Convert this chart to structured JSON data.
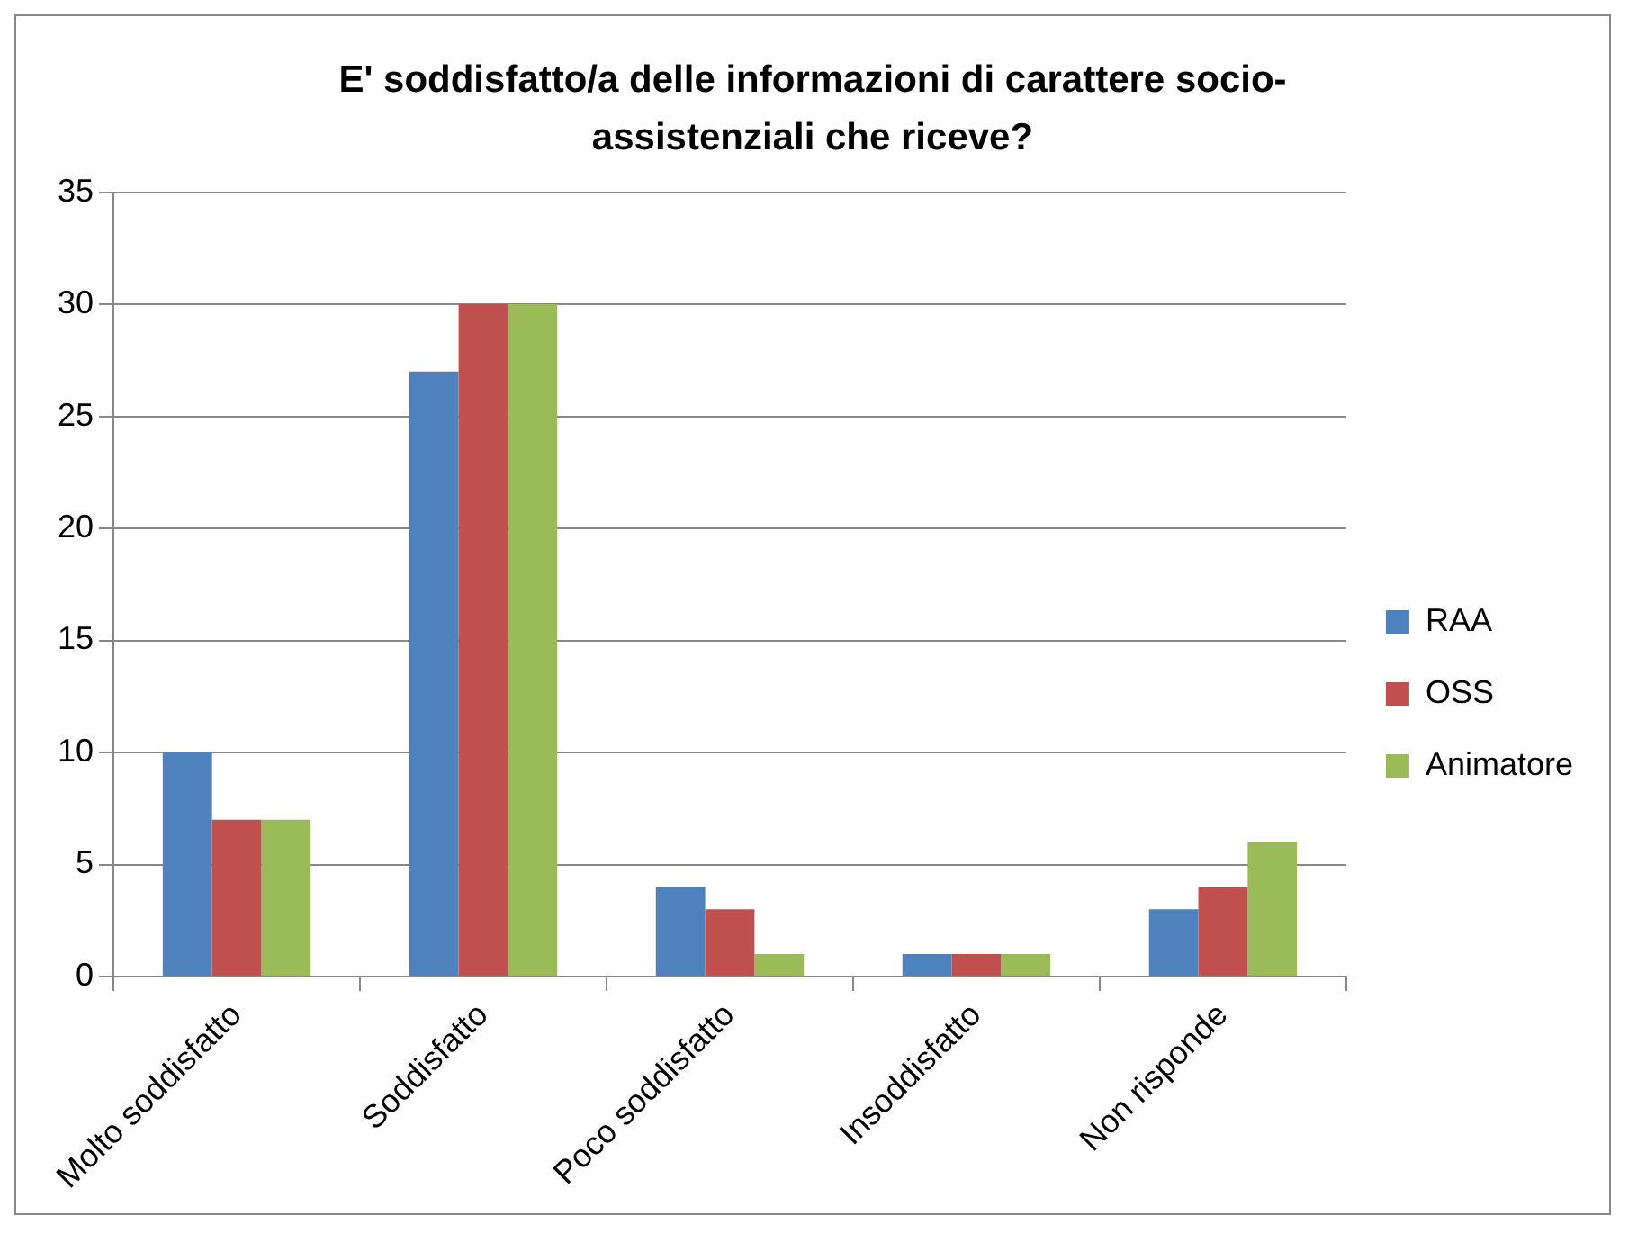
{
  "chart_data": {
    "type": "bar",
    "title": "E' soddisfatto/a delle informazioni di carattere socio-assistenziali che riceve?",
    "categories": [
      "Molto soddisfatto",
      "Soddisfatto",
      "Poco soddisfatto",
      "Insoddisfatto",
      "Non risponde"
    ],
    "series": [
      {
        "name": "RAA",
        "color": "#4f81bd",
        "values": [
          10,
          27,
          4,
          1,
          3
        ]
      },
      {
        "name": "OSS",
        "color": "#c0504d",
        "values": [
          7,
          30,
          3,
          1,
          4
        ]
      },
      {
        "name": "Animatore",
        "color": "#9bbb59",
        "values": [
          7,
          30,
          1,
          1,
          6
        ]
      }
    ],
    "ylim": [
      0,
      35
    ],
    "yticks": [
      0,
      5,
      10,
      15,
      20,
      25,
      30,
      35
    ],
    "grid": "y",
    "legend": "right"
  }
}
